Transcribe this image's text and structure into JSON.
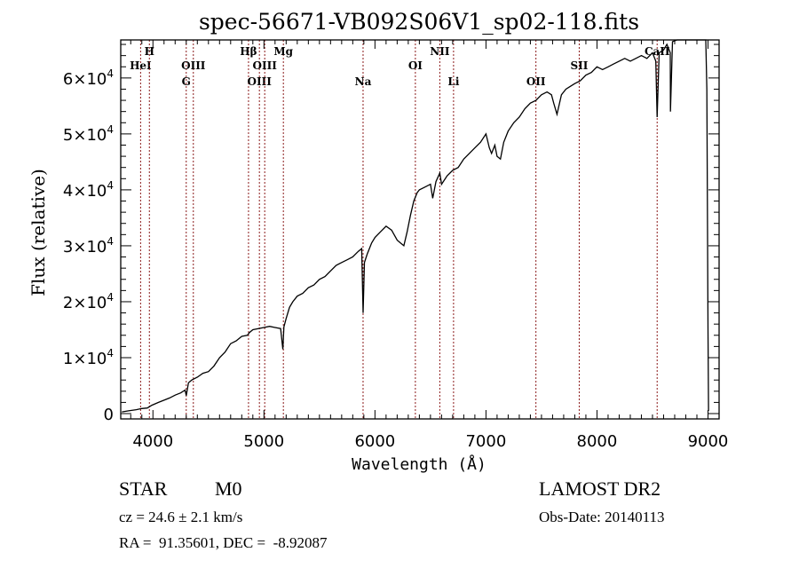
{
  "chart_data": {
    "type": "line",
    "title": "spec-56671-VB092S06V1_sp02-118.fits",
    "xlabel": "Wavelength (Å)",
    "ylabel": "Flux (relative)",
    "xlim": [
      3710,
      9100
    ],
    "ylim": [
      -950,
      66800
    ],
    "grid": false,
    "x_ticks": [
      {
        "value": 4000,
        "label": "4000"
      },
      {
        "value": 5000,
        "label": "5000"
      },
      {
        "value": 6000,
        "label": "6000"
      },
      {
        "value": 7000,
        "label": "7000"
      },
      {
        "value": 8000,
        "label": "8000"
      },
      {
        "value": 9000,
        "label": "9000"
      }
    ],
    "y_ticks": [
      {
        "value": 0,
        "mantissa": "0",
        "exp": ""
      },
      {
        "value": 10000,
        "mantissa": "1×10",
        "exp": "4"
      },
      {
        "value": 20000,
        "mantissa": "2×10",
        "exp": "4"
      },
      {
        "value": 30000,
        "mantissa": "3×10",
        "exp": "4"
      },
      {
        "value": 40000,
        "mantissa": "4×10",
        "exp": "4"
      },
      {
        "value": 50000,
        "mantissa": "5×10",
        "exp": "4"
      },
      {
        "value": 60000,
        "mantissa": "6×10",
        "exp": "4"
      }
    ],
    "line_markers": [
      {
        "name": "HeI",
        "wavelength": 3889,
        "row": 2
      },
      {
        "name": "H",
        "wavelength": 3968,
        "row": 1
      },
      {
        "name": "G",
        "wavelength": 4300,
        "row": 3
      },
      {
        "name": "OIII",
        "wavelength": 4364,
        "row": 2
      },
      {
        "name": "Hβ",
        "wavelength": 4861,
        "row": 1
      },
      {
        "name": "OIII",
        "wavelength": 4959,
        "row": 3
      },
      {
        "name": "OIII",
        "wavelength": 5007,
        "row": 2
      },
      {
        "name": "Mg",
        "wavelength": 5175,
        "row": 1
      },
      {
        "name": "Na",
        "wavelength": 5893,
        "row": 3
      },
      {
        "name": "OI",
        "wavelength": 6364,
        "row": 2
      },
      {
        "name": "NII",
        "wavelength": 6584,
        "row": 1
      },
      {
        "name": "Li",
        "wavelength": 6708,
        "row": 3
      },
      {
        "name": "OII",
        "wavelength": 7450,
        "row": 3
      },
      {
        "name": "SII",
        "wavelength": 7840,
        "row": 2
      },
      {
        "name": "CaII",
        "wavelength": 8542,
        "row": 1
      }
    ],
    "series": [
      {
        "name": "flux",
        "color": "#000000",
        "x": [
          3720,
          3780,
          3850,
          3900,
          3950,
          3990,
          4050,
          4100,
          4150,
          4200,
          4250,
          4290,
          4300,
          4320,
          4350,
          4400,
          4450,
          4500,
          4550,
          4600,
          4650,
          4700,
          4750,
          4800,
          4850,
          4870,
          4900,
          4950,
          5000,
          5050,
          5100,
          5150,
          5170,
          5180,
          5200,
          5230,
          5260,
          5300,
          5350,
          5400,
          5450,
          5500,
          5550,
          5600,
          5650,
          5700,
          5750,
          5800,
          5850,
          5880,
          5893,
          5905,
          5930,
          5970,
          6000,
          6050,
          6100,
          6150,
          6200,
          6230,
          6260,
          6290,
          6320,
          6350,
          6380,
          6400,
          6450,
          6500,
          6520,
          6550,
          6584,
          6600,
          6650,
          6700,
          6750,
          6800,
          6850,
          6900,
          6950,
          7000,
          7030,
          7050,
          7080,
          7100,
          7130,
          7160,
          7200,
          7250,
          7300,
          7350,
          7400,
          7450,
          7500,
          7550,
          7590,
          7610,
          7640,
          7680,
          7720,
          7760,
          7800,
          7850,
          7900,
          7950,
          8000,
          8050,
          8100,
          8150,
          8200,
          8250,
          8300,
          8350,
          8400,
          8450,
          8500,
          8530,
          8542,
          8560,
          8600,
          8630,
          8660,
          8662,
          8680,
          8720,
          8760,
          8800,
          8840,
          8880,
          8920,
          8950,
          8980,
          8990,
          9000,
          9005
        ],
        "y": [
          300,
          500,
          700,
          900,
          1000,
          1500,
          2000,
          2400,
          2800,
          3300,
          3700,
          4200,
          3200,
          5500,
          6000,
          6500,
          7200,
          7500,
          8500,
          10000,
          11000,
          12500,
          13000,
          13800,
          14000,
          14500,
          15000,
          15200,
          15400,
          15600,
          15400,
          15200,
          11500,
          15500,
          17000,
          19000,
          20000,
          21000,
          21500,
          22500,
          23000,
          24000,
          24500,
          25500,
          26500,
          27000,
          27500,
          28000,
          29000,
          29500,
          18000,
          27000,
          28500,
          30500,
          31500,
          32500,
          33500,
          32800,
          31000,
          30500,
          30000,
          32500,
          35500,
          38000,
          39500,
          40000,
          40500,
          41000,
          38500,
          41500,
          43000,
          41000,
          42500,
          43500,
          44000,
          45500,
          46500,
          47500,
          48500,
          50000,
          47500,
          46500,
          48000,
          46000,
          45500,
          48500,
          50500,
          52000,
          53000,
          54500,
          55500,
          56000,
          57000,
          57500,
          57000,
          55500,
          53500,
          57000,
          58000,
          58500,
          59000,
          59500,
          60500,
          61000,
          62000,
          61500,
          62000,
          62500,
          63000,
          63500,
          63000,
          63500,
          64000,
          63500,
          64500,
          63000,
          53000,
          64500,
          65000,
          66000,
          64500,
          54000,
          66500,
          67500,
          68500,
          69000,
          70000,
          71500,
          72000,
          71000,
          70500,
          58000,
          15000,
          500
        ]
      }
    ]
  },
  "annotations": {
    "object_type": "STAR",
    "subclass": "M0",
    "survey": "LAMOST DR2",
    "redshift_line": "cz = 24.6 ± 2.1 km/s",
    "obs_date_line": "Obs-Date: 20140113",
    "coords_line": "RA =  91.35601, DEC =  -8.92087"
  }
}
